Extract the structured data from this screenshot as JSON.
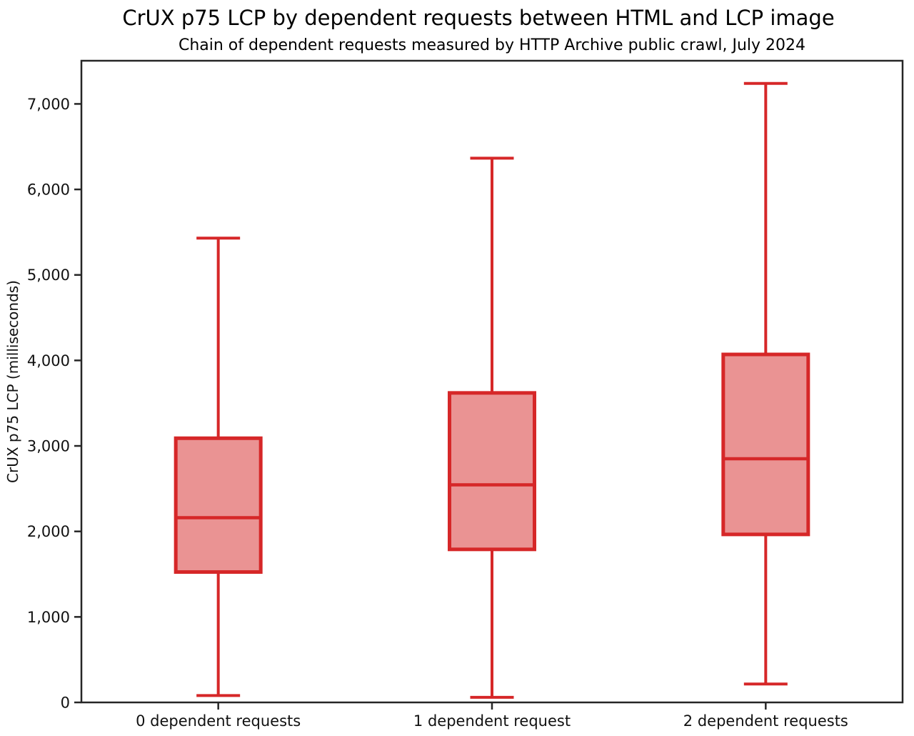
{
  "header": {
    "title": "CrUX p75 LCP by dependent requests between HTML and LCP image",
    "subtitle": "Chain of dependent requests measured by HTTP Archive public crawl, July 2024"
  },
  "chart_data": {
    "type": "boxplot",
    "title": "CrUX p75 LCP by dependent requests between HTML and LCP image",
    "subtitle": "Chain of dependent requests measured by HTTP Archive public crawl, July 2024",
    "ylabel": "CrUX p75 LCP (milliseconds)",
    "xlabel": "",
    "unit": "milliseconds",
    "categories": [
      "0 dependent requests",
      "1 dependent request",
      "2 dependent requests"
    ],
    "series": [
      {
        "name": "0 dependent requests",
        "whisker_low": 80,
        "q1": 1525,
        "median": 2160,
        "q3": 3090,
        "whisker_high": 5430
      },
      {
        "name": "1 dependent request",
        "whisker_low": 60,
        "q1": 1790,
        "median": 2545,
        "q3": 3620,
        "whisker_high": 6365
      },
      {
        "name": "2 dependent requests",
        "whisker_low": 215,
        "q1": 1965,
        "median": 2850,
        "q3": 4070,
        "whisker_high": 7240
      }
    ],
    "ylim": [
      0,
      7505
    ],
    "yticks": [
      0,
      1000,
      2000,
      3000,
      4000,
      5000,
      6000,
      7000
    ],
    "ytick_labels": [
      "0",
      "1,000",
      "2,000",
      "3,000",
      "4,000",
      "5,000",
      "6,000",
      "7,000"
    ],
    "grid": false,
    "legend": null,
    "outliers": [],
    "colors": {
      "box_edge": "#d62728",
      "box_fill": "#ea9393",
      "axis": "#262626",
      "text": "#111111"
    }
  }
}
